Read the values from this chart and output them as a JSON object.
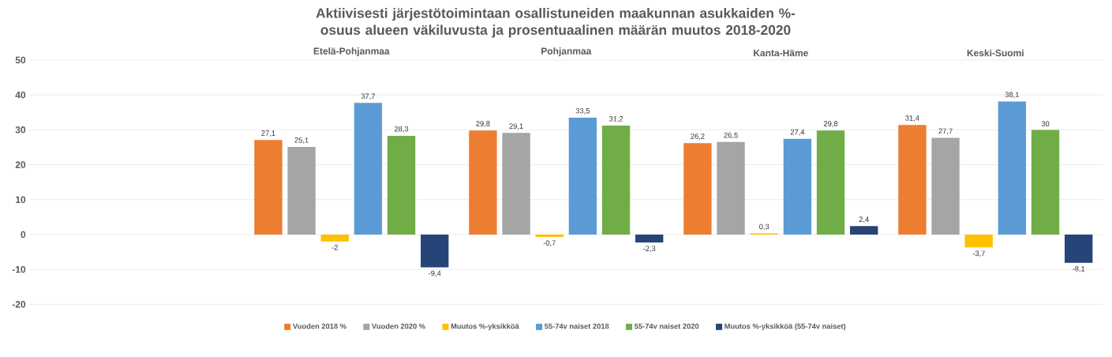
{
  "chart_data": {
    "type": "bar",
    "title": "Aktiivisesti järjestötoimintaan osallistuneiden maakunnan asukkaiden %-osuus alueen väkiluvusta ja prosentuaalinen määrän muutos 2018-2020",
    "categories": [
      null,
      "Etelä-Pohjanmaa",
      "Pohjanmaa",
      "Kanta-Häme",
      "Keski-Suomi"
    ],
    "series": [
      {
        "name": "Vuoden 2018 %",
        "color": "#ed7d31",
        "values": [
          null,
          27.1,
          29.8,
          26.2,
          31.4
        ],
        "value_labels": [
          null,
          "27,1",
          "29,8",
          "26,2",
          "31,4"
        ]
      },
      {
        "name": "Vuoden 2020 %",
        "color": "#a5a5a5",
        "values": [
          null,
          25.1,
          29.1,
          26.5,
          27.7
        ],
        "value_labels": [
          null,
          "25,1",
          "29,1",
          "26,5",
          "27,7"
        ]
      },
      {
        "name": "Muutos %-yksikköä",
        "color": "#ffc000",
        "values": [
          null,
          -2,
          -0.7,
          0.3,
          -3.7
        ],
        "value_labels": [
          null,
          "-2",
          "-0,7",
          "0,3",
          "-3,7"
        ]
      },
      {
        "name": "55-74v naiset 2018",
        "color": "#5b9bd5",
        "values": [
          null,
          37.7,
          33.5,
          27.4,
          38.1
        ],
        "value_labels": [
          null,
          "37,7",
          "33,5",
          "27,4",
          "38,1"
        ]
      },
      {
        "name": "55-74v naiset 2020",
        "color": "#70ad47",
        "values": [
          null,
          28.3,
          31.2,
          29.8,
          30
        ],
        "value_labels": [
          null,
          "28,3",
          "31,2",
          "29,8",
          "30"
        ]
      },
      {
        "name": "Muutos %-yksikköä (55-74v naiset)",
        "color": "#264478",
        "values": [
          null,
          -9.4,
          -2.3,
          2.4,
          -8.1
        ],
        "value_labels": [
          null,
          "-9,4",
          "-2,3",
          "2,4",
          "-8,1"
        ]
      }
    ],
    "ylim": [
      -20,
      50
    ],
    "yticks": [
      -20,
      -10,
      0,
      10,
      20,
      30,
      40,
      50
    ],
    "grid": "y",
    "legend": "bottom"
  }
}
